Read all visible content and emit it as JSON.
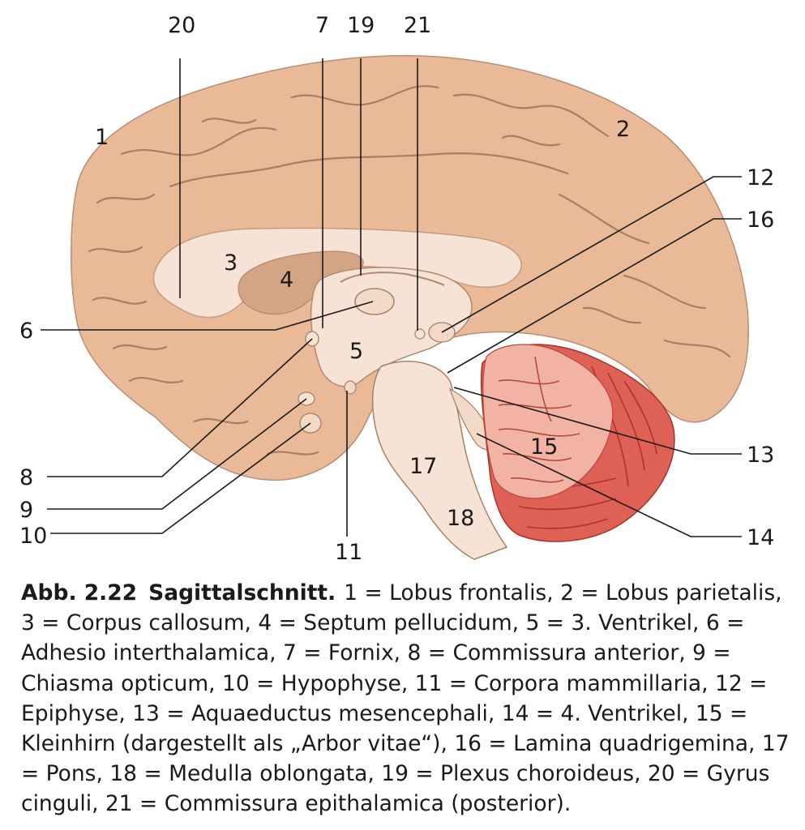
{
  "labels": {
    "l1": "1",
    "l2": "2",
    "l3": "3",
    "l4": "4",
    "l5": "5",
    "l6": "6",
    "l7": "7",
    "l8": "8",
    "l9": "9",
    "l10": "10",
    "l11": "11",
    "l12": "12",
    "l13": "13",
    "l14": "14",
    "l15": "15",
    "l16": "16",
    "l17": "17",
    "l18": "18",
    "l19": "19",
    "l20": "20",
    "l21": "21"
  },
  "caption": {
    "number": "Abb. 2.22",
    "title": "Sagittalschnitt.",
    "text": "1 = Lobus frontalis, 2 = Lobus parietalis, 3 = Corpus callosum, 4 = Septum pellucidum, 5 = 3. Ventrikel, 6 = Adhesio interthalamica, 7 = Fornix, 8 = Commissura anterior, 9 = Chiasma opticum, 10 = Hypophyse, 11 = Corpora mammillaria, 12 = Epiphyse, 13 = Aquaeductus mesencephali, 14 = 4. Ventrikel, 15 = Kleinhirn (dargestellt als „Arbor vitae“), 16 = Lamina quadrigemina, 17 = Pons, 18 = Medulla oblongata, 19 = Plexus choroideus, 20 = Gyrus cinguli, 21 = Commissura epithalamica (posterior)."
  },
  "colors": {
    "cortex": "#e9b998",
    "midline": "#f6e3d6",
    "septum": "#d3a585",
    "cerebellum": "#df6054",
    "arbor": "#f2b3a5"
  }
}
